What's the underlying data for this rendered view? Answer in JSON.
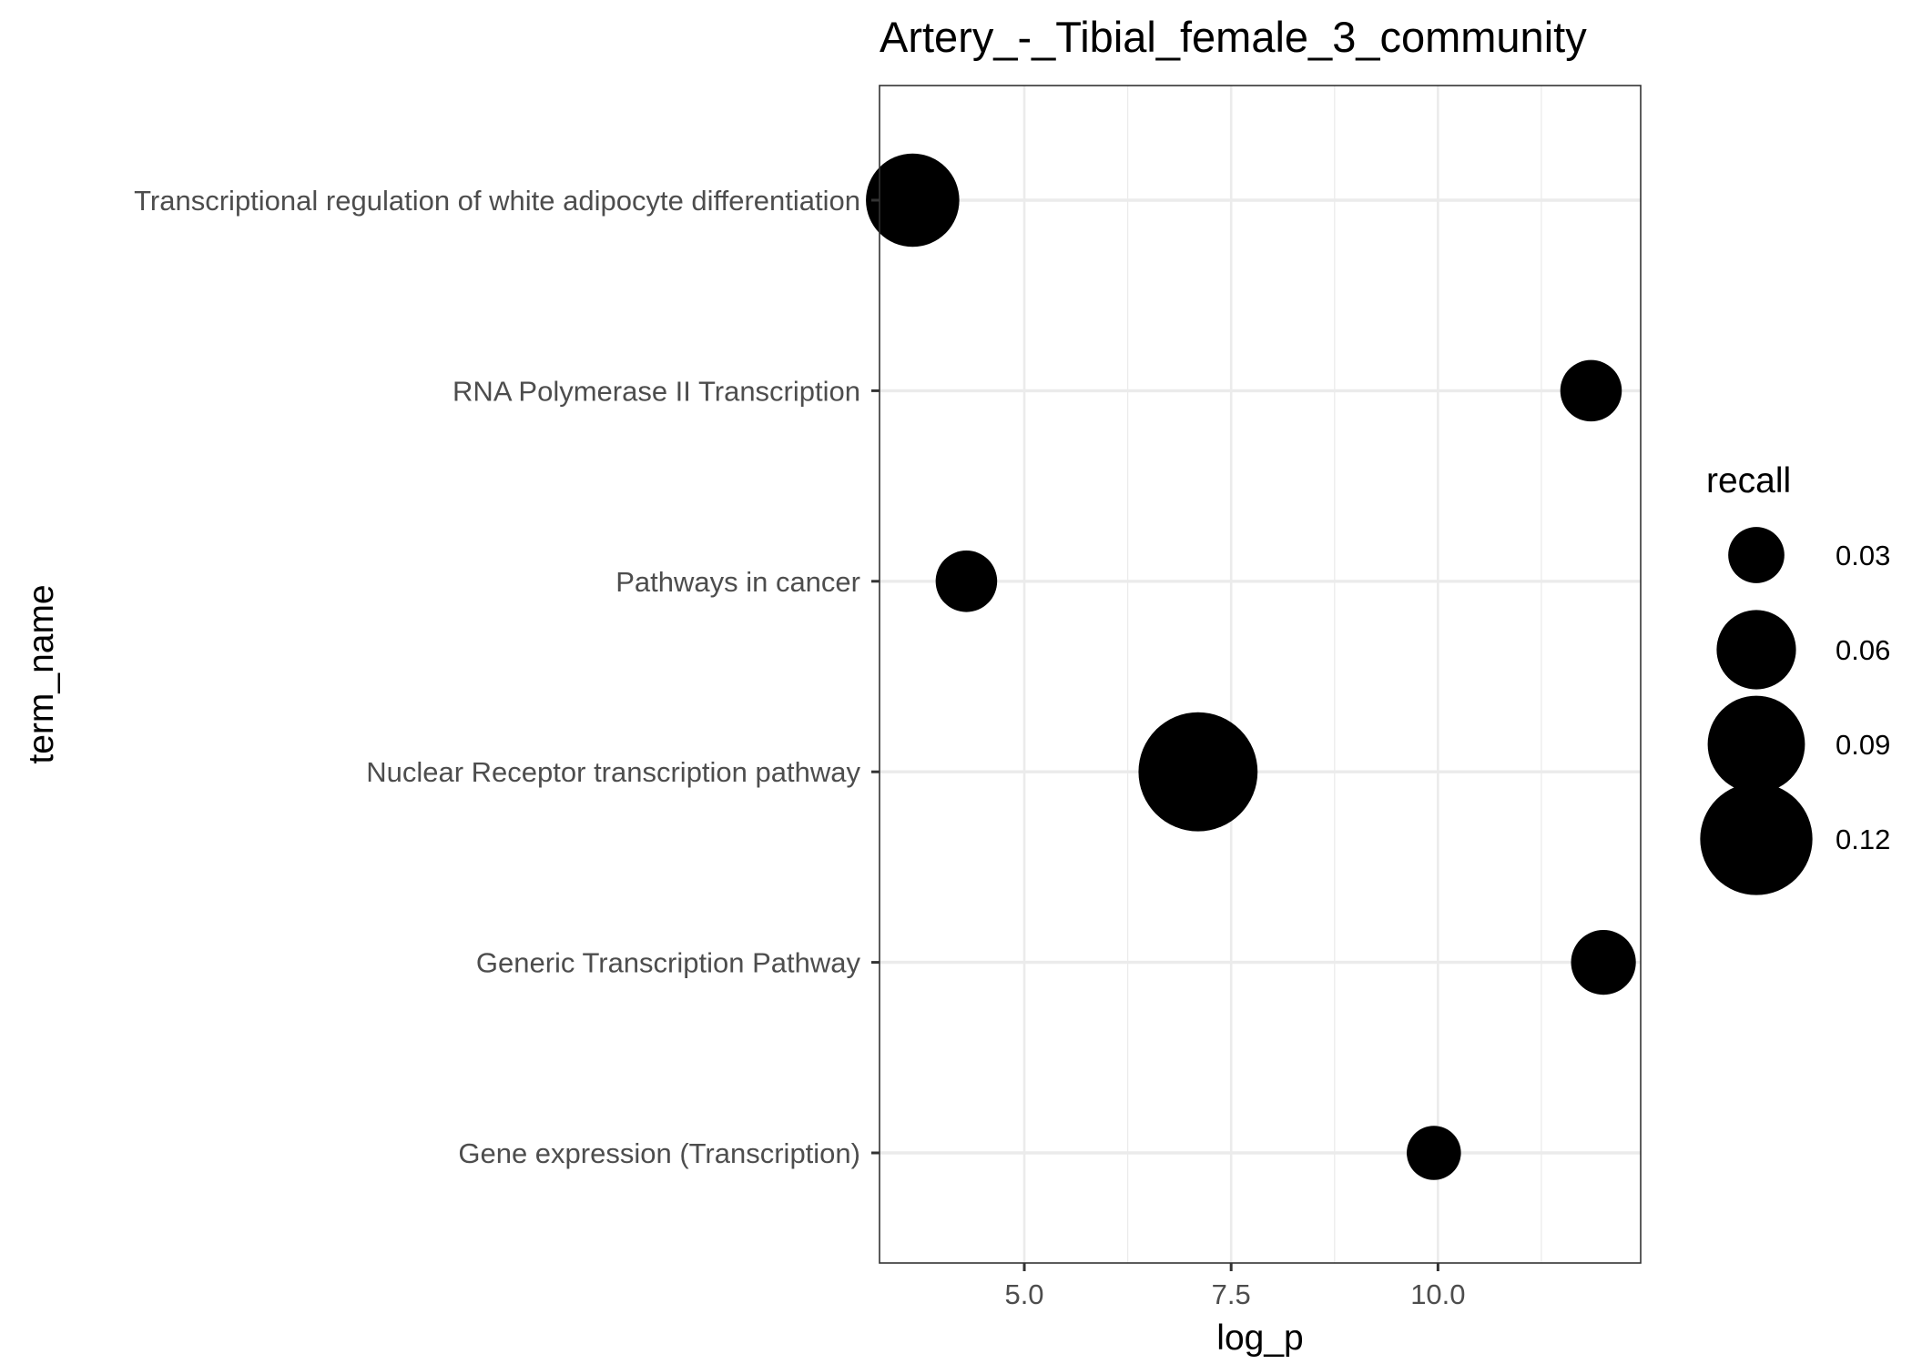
{
  "chart_data": {
    "type": "scatter",
    "title": "Artery_-_Tibial_female_3_community",
    "xlabel": "log_p",
    "ylabel": "term_name",
    "xlim": [
      3.25,
      12.45
    ],
    "x_ticks": [
      {
        "value": 5.0,
        "label": "5.0"
      },
      {
        "value": 7.5,
        "label": "7.5"
      },
      {
        "value": 10.0,
        "label": "10.0"
      }
    ],
    "x_minor_ticks": [
      6.25,
      8.75,
      11.25
    ],
    "grid": true,
    "categories": [
      "Transcriptional regulation of white adipocyte differentiation",
      "RNA Polymerase II Transcription",
      "Pathways in cancer",
      "Nuclear Receptor transcription pathway",
      "Generic Transcription Pathway",
      "Gene expression (Transcription)"
    ],
    "points": [
      {
        "term": "Transcriptional regulation of white adipocyte differentiation",
        "log_p": 3.65,
        "recall": 0.083
      },
      {
        "term": "RNA Polymerase II Transcription",
        "log_p": 11.85,
        "recall": 0.036
      },
      {
        "term": "Pathways in cancer",
        "log_p": 4.3,
        "recall": 0.036
      },
      {
        "term": "Nuclear Receptor transcription pathway",
        "log_p": 7.1,
        "recall": 0.135
      },
      {
        "term": "Generic Transcription Pathway",
        "log_p": 12.0,
        "recall": 0.04
      },
      {
        "term": "Gene expression (Transcription)",
        "log_p": 9.95,
        "recall": 0.028
      }
    ],
    "point_color": "#000000",
    "legend": {
      "title": "recall",
      "placement": "right",
      "entries": [
        {
          "value": 0.03,
          "label": "0.03"
        },
        {
          "value": 0.06,
          "label": "0.06"
        },
        {
          "value": 0.09,
          "label": "0.09"
        },
        {
          "value": 0.12,
          "label": "0.12"
        }
      ]
    }
  }
}
